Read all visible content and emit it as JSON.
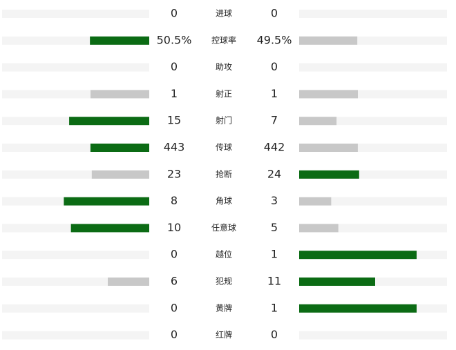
{
  "stats": {
    "colors": {
      "lead": "#0b6b14",
      "trail": "#c8c8c8"
    },
    "rows": [
      {
        "label": "进球",
        "home": 0,
        "away": 0
      },
      {
        "label": "控球率",
        "home": 50.5,
        "away": 49.5,
        "home_label": "50.5%",
        "away_label": "49.5%"
      },
      {
        "label": "助攻",
        "home": 0,
        "away": 0
      },
      {
        "label": "射正",
        "home": 1,
        "away": 1
      },
      {
        "label": "射门",
        "home": 15,
        "away": 7
      },
      {
        "label": "传球",
        "home": 443,
        "away": 442
      },
      {
        "label": "抢断",
        "home": 23,
        "away": 24
      },
      {
        "label": "角球",
        "home": 8,
        "away": 3
      },
      {
        "label": "任意球",
        "home": 10,
        "away": 5
      },
      {
        "label": "越位",
        "home": 0,
        "away": 1
      },
      {
        "label": "犯规",
        "home": 6,
        "away": 11
      },
      {
        "label": "黄牌",
        "home": 0,
        "away": 1
      },
      {
        "label": "红牌",
        "home": 0,
        "away": 0
      }
    ]
  }
}
